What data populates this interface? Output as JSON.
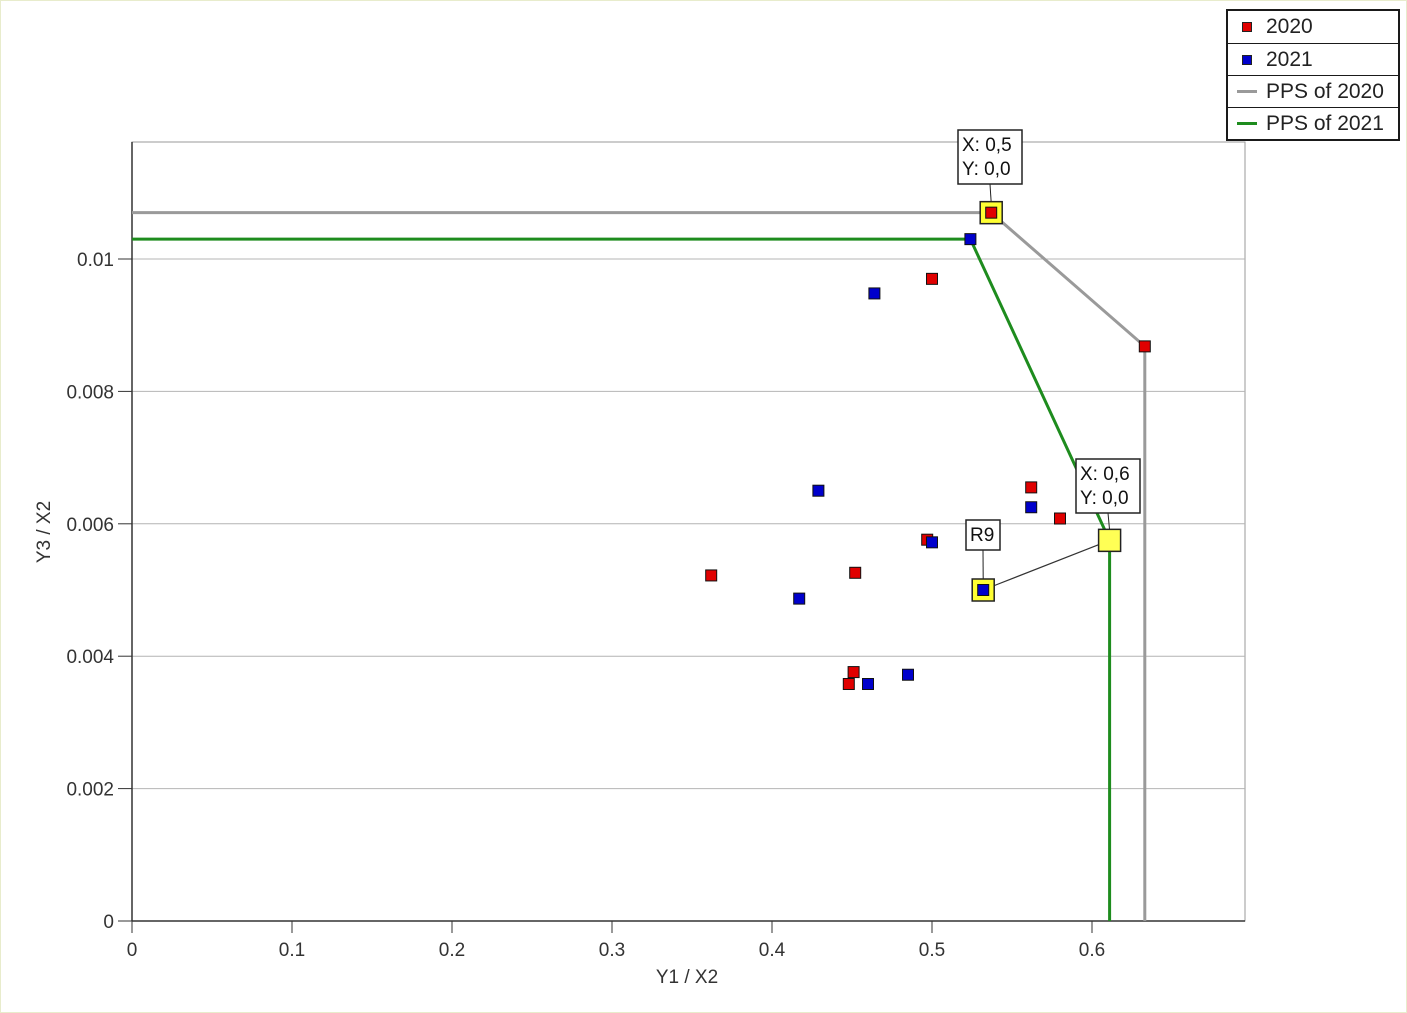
{
  "chart_data": {
    "type": "scatter",
    "xlabel": "Y1 / X2",
    "ylabel": "Y3 / X2",
    "xlim": [
      0,
      0.695
    ],
    "ylim": [
      0,
      0.0117
    ],
    "x_ticks": [
      {
        "v": 0,
        "label": "0"
      },
      {
        "v": 0.1,
        "label": "0.1"
      },
      {
        "v": 0.2,
        "label": "0.2"
      },
      {
        "v": 0.3,
        "label": "0.3"
      },
      {
        "v": 0.4,
        "label": "0.4"
      },
      {
        "v": 0.5,
        "label": "0.5"
      },
      {
        "v": 0.6,
        "label": "0.6"
      }
    ],
    "y_ticks": [
      {
        "v": 0,
        "label": "0"
      },
      {
        "v": 0.002,
        "label": "0.002"
      },
      {
        "v": 0.004,
        "label": "0.004"
      },
      {
        "v": 0.006,
        "label": "0.006"
      },
      {
        "v": 0.008,
        "label": "0.008"
      },
      {
        "v": 0.01,
        "label": "0.01"
      }
    ],
    "grid": "horizontal",
    "legend_position": "top-right",
    "series": [
      {
        "name": "2020",
        "kind": "points",
        "color": "#e00000",
        "points": [
          [
            0.537,
            0.0107
          ],
          [
            0.5,
            0.0097
          ],
          [
            0.633,
            0.00868
          ],
          [
            0.562,
            0.00655
          ],
          [
            0.58,
            0.00608
          ],
          [
            0.497,
            0.00576
          ],
          [
            0.452,
            0.00526
          ],
          [
            0.362,
            0.00522
          ],
          [
            0.451,
            0.00376
          ],
          [
            0.448,
            0.00358
          ]
        ]
      },
      {
        "name": "2021",
        "kind": "points",
        "color": "#0000cc",
        "points": [
          [
            0.524,
            0.0103
          ],
          [
            0.464,
            0.00948
          ],
          [
            0.429,
            0.0065
          ],
          [
            0.562,
            0.00625
          ],
          [
            0.5,
            0.00572
          ],
          [
            0.417,
            0.00487
          ],
          [
            0.532,
            0.005
          ],
          [
            0.46,
            0.00358
          ],
          [
            0.485,
            0.00372
          ]
        ]
      },
      {
        "name": "PPS of 2020",
        "kind": "line",
        "color": "#9a9a9a",
        "points": [
          [
            0,
            0.0107
          ],
          [
            0.537,
            0.0107
          ],
          [
            0.633,
            0.00868
          ],
          [
            0.633,
            0
          ]
        ]
      },
      {
        "name": "PPS of 2021",
        "kind": "line",
        "color": "#1e8c1e",
        "points": [
          [
            0,
            0.0103
          ],
          [
            0.524,
            0.0103
          ],
          [
            0.611,
            0.00575
          ],
          [
            0.611,
            0
          ]
        ]
      }
    ],
    "annotations": [
      {
        "anchor": [
          0.537,
          0.0107
        ],
        "lines": [
          "X: 0,5",
          "Y: 0,0"
        ]
      },
      {
        "anchor": [
          0.611,
          0.00575
        ],
        "lines": [
          "X: 0,6",
          "Y: 0,0"
        ]
      },
      {
        "anchor": [
          0.532,
          0.005
        ],
        "lines": [
          "R9"
        ]
      }
    ]
  }
}
